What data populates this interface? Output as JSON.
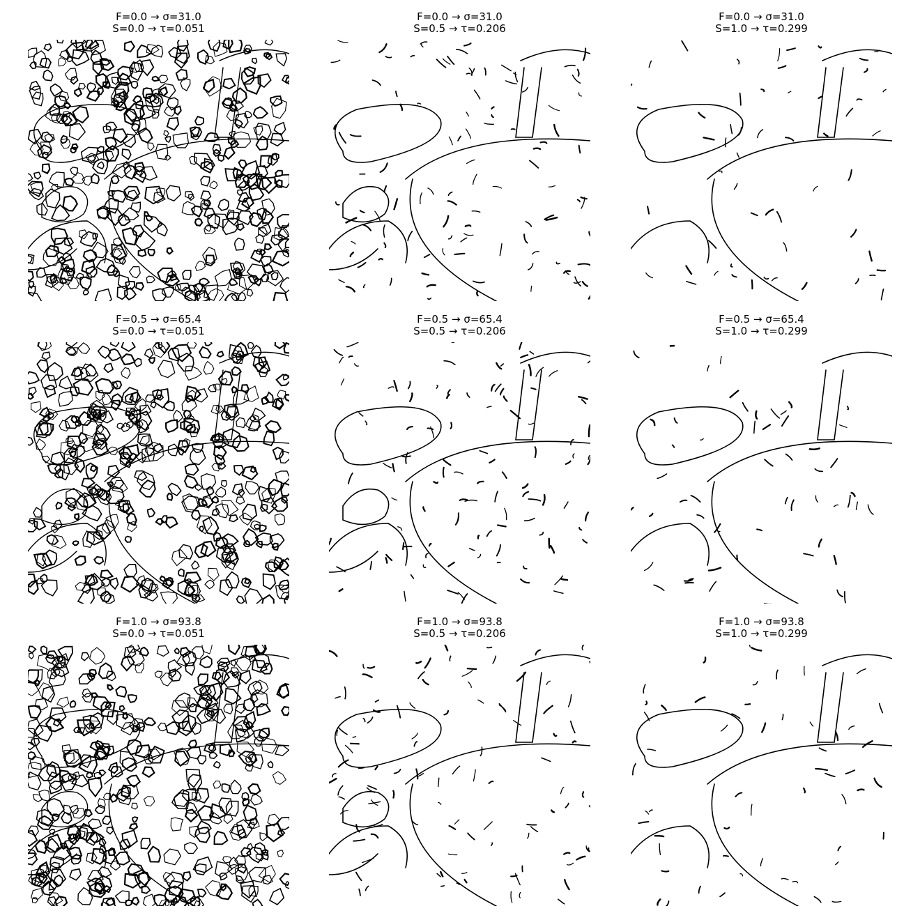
{
  "panels": [
    {
      "f_label": "F=0.0 → σ=31.0",
      "s_label": "S=0.0 → τ=0.051"
    },
    {
      "f_label": "F=0.0 → σ=31.0",
      "s_label": "S=0.5 → τ=0.206"
    },
    {
      "f_label": "F=0.0 → σ=31.0",
      "s_label": "S=1.0 → τ=0.299"
    },
    {
      "f_label": "F=0.5 → σ=65.4",
      "s_label": "S=0.0 → τ=0.051"
    },
    {
      "f_label": "F=0.5 → σ=65.4",
      "s_label": "S=0.5 → τ=0.206"
    },
    {
      "f_label": "F=0.5 → σ=65.4",
      "s_label": "S=1.0 → τ=0.299"
    },
    {
      "f_label": "F=1.0 → σ=93.8",
      "s_label": "S=0.0 → τ=0.051"
    },
    {
      "f_label": "F=1.0 → σ=93.8",
      "s_label": "S=0.5 → τ=0.206"
    },
    {
      "f_label": "F=1.0 → σ=93.8",
      "s_label": "S=1.0 → τ=0.299"
    }
  ],
  "colors": {
    "edge": "#000000",
    "background": "#ffffff"
  }
}
